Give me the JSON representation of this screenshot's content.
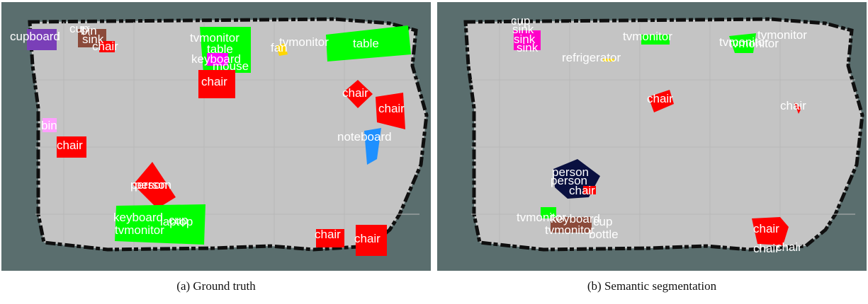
{
  "figure": {
    "panel_a": {
      "caption": "(a) Ground truth",
      "labels": {
        "cupboard": "cupboard",
        "cup": "cup",
        "bin_top": "bin",
        "sink": "sink",
        "chair_top": "chair",
        "tvmonitor": "tvmonitor",
        "table_mid": "table",
        "keyboard": "keyboard",
        "mouse": "mouse",
        "fan": "fan",
        "tvmonitor_right": "tvmonitor",
        "table_right": "table",
        "chair_mid": "chair",
        "chair_r1": "chair",
        "chair_r2": "chair",
        "bin_left": "bin",
        "chair_left": "chair",
        "noteboard": "noteboard",
        "person1": "person",
        "person2": "person",
        "keyboard_bottom": "keyboard",
        "tvmonitor_bottom": "tvmonitor",
        "cup_bottom": "cup",
        "laptop": "laptop",
        "chair_b1": "chair",
        "chair_b2": "chair"
      }
    },
    "panel_b": {
      "caption": "(b) Semantic segmentation",
      "labels": {
        "cup": "cup",
        "sink1": "sink",
        "sink2": "sink",
        "sink3": "sink",
        "tvmonitor_mid": "tvmonitor",
        "tvmonitor_r1": "tvmonitor",
        "tvmonitor_r2": "tvmonitor",
        "tvmonitor_r3": "tvmonitor",
        "refrigerator": "refrigerator",
        "chair_mid": "chair",
        "chair_right": "chair",
        "person1": "person",
        "person2": "person",
        "chair_person": "chair",
        "tvmonitor_b1": "tvmonitor",
        "keyboard": "keyboard",
        "cup_bottom": "cup",
        "tvmonitor_b2": "tvmonitor",
        "bottle": "bottle",
        "chair_b1": "chair",
        "chair_b2": "chair",
        "chair_b3": "chair"
      }
    },
    "colors": {
      "background": "#5a6e6e",
      "floor": "#c4c4c4",
      "wall": "#0f0f0f",
      "grid": "#b8b8b8",
      "chair": "#ff0000",
      "table": "#00ff00",
      "tvmonitor": "#00ff00",
      "cupboard": "#7a3fb8",
      "sink": "#8b4a3a",
      "person": "#0a1040",
      "noteboard": "#1e90ff",
      "fan": "#ffd700",
      "bin": "#ff9fff",
      "keyboard": "#ff00ff"
    }
  }
}
